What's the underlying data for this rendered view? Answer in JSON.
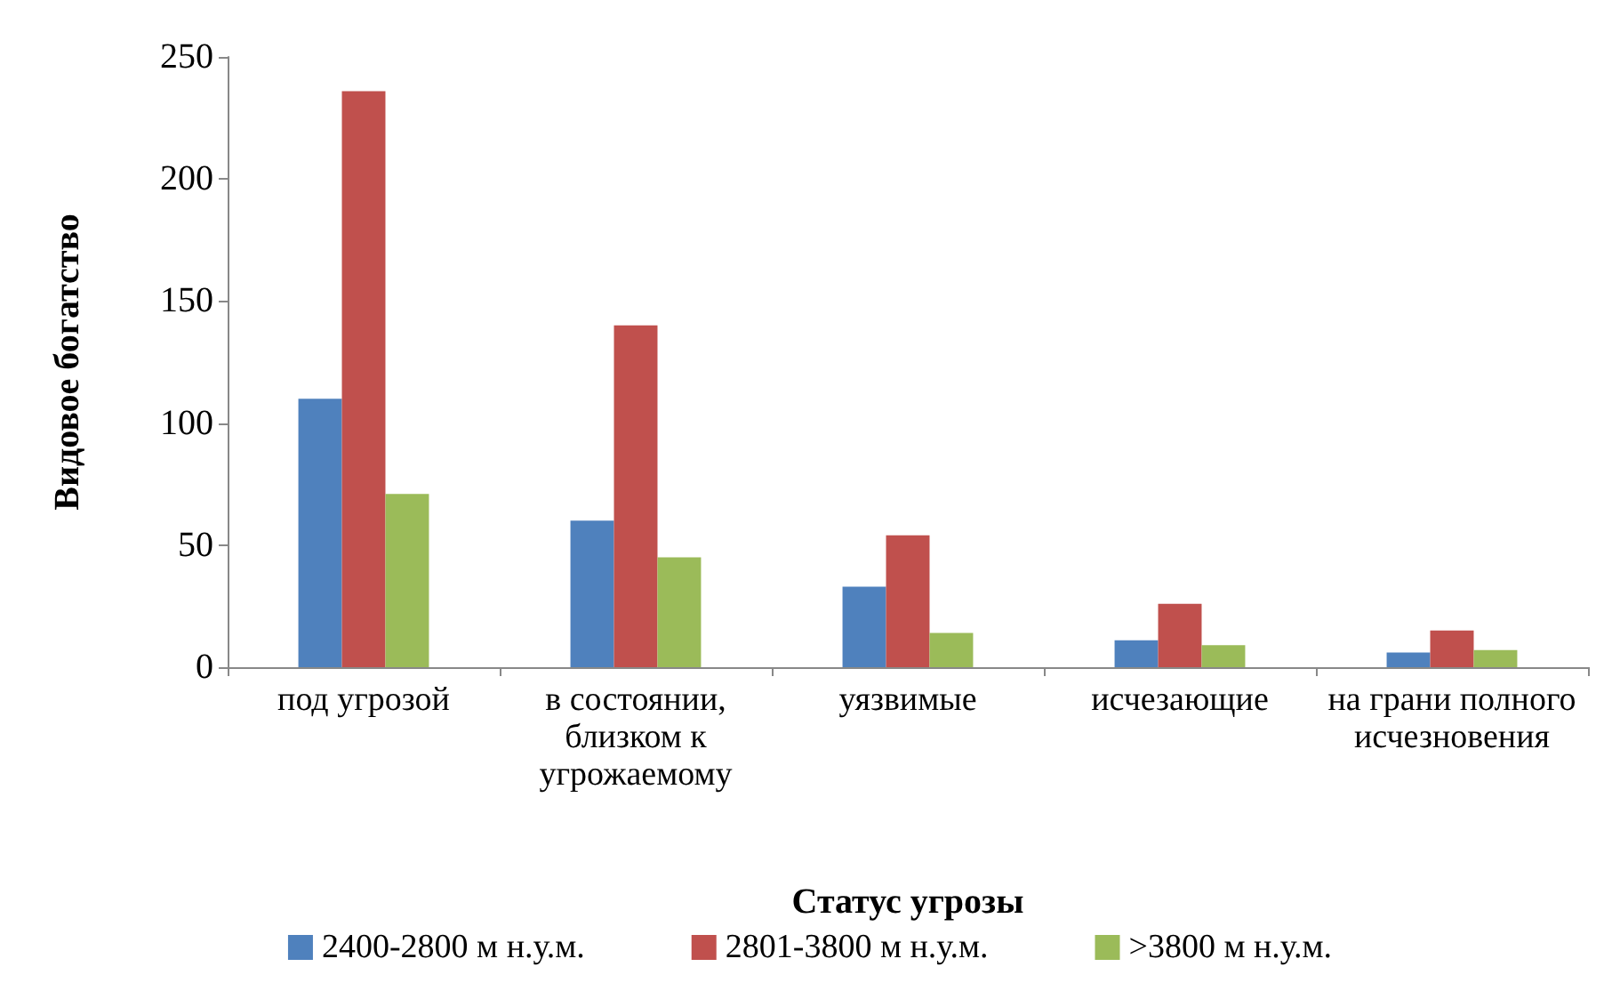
{
  "chart_data": {
    "type": "bar",
    "xlabel": "Статус угрозы",
    "ylabel": "Видовое богатство",
    "categories": [
      "под угрозой",
      "в состоянии, близком к угрожаемому",
      "уязвимые",
      "исчезающие",
      "на грани полного исчезновения"
    ],
    "series": [
      {
        "name": "2400-2800 м н.у.м.",
        "color": "#4f81bd",
        "values": [
          110,
          60,
          33,
          11,
          6
        ]
      },
      {
        "name": "2801-3800 м н.у.м.",
        "color": "#c0504d",
        "values": [
          236,
          140,
          54,
          26,
          15
        ]
      },
      {
        "name": ">3800 м н.у.м.",
        "color": "#9bbb59",
        "values": [
          71,
          45,
          14,
          9,
          7
        ]
      }
    ],
    "ylim": [
      0,
      250
    ],
    "yticks": [
      0,
      50,
      100,
      150,
      200,
      250
    ],
    "grid": false,
    "legend": "bottom"
  }
}
